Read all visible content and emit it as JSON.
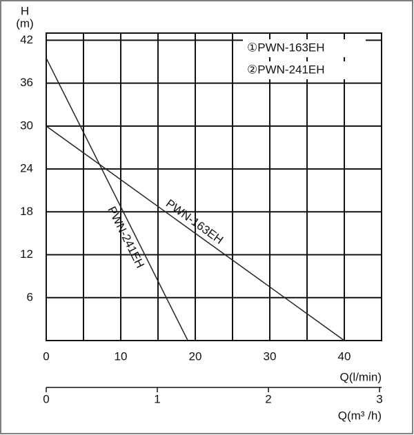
{
  "chart_data": {
    "type": "line",
    "y_label_top": "H",
    "y_label_unit": "(m)",
    "x_label": "Q(l/min)",
    "x2_label": "Q(m³ /h)",
    "legend_labels": [
      "①PWN-163EH",
      "②PWN-241EH"
    ],
    "series": [
      {
        "name": "PWN-163EH",
        "color": "#222222",
        "x": [
          0,
          40
        ],
        "values": [
          30,
          0
        ]
      },
      {
        "name": "PWN-241EH",
        "color": "#222222",
        "x": [
          0,
          19
        ],
        "values": [
          39.5,
          0
        ]
      }
    ],
    "xlim": [
      0,
      45
    ],
    "xticks": [
      0,
      10,
      20,
      30,
      40
    ],
    "ylim": [
      0,
      43
    ],
    "yticks": [
      6,
      12,
      18,
      24,
      30,
      36,
      42
    ],
    "x2lim": [
      0,
      3
    ],
    "x2ticks": [
      0,
      1,
      2,
      3
    ],
    "grid": true
  }
}
